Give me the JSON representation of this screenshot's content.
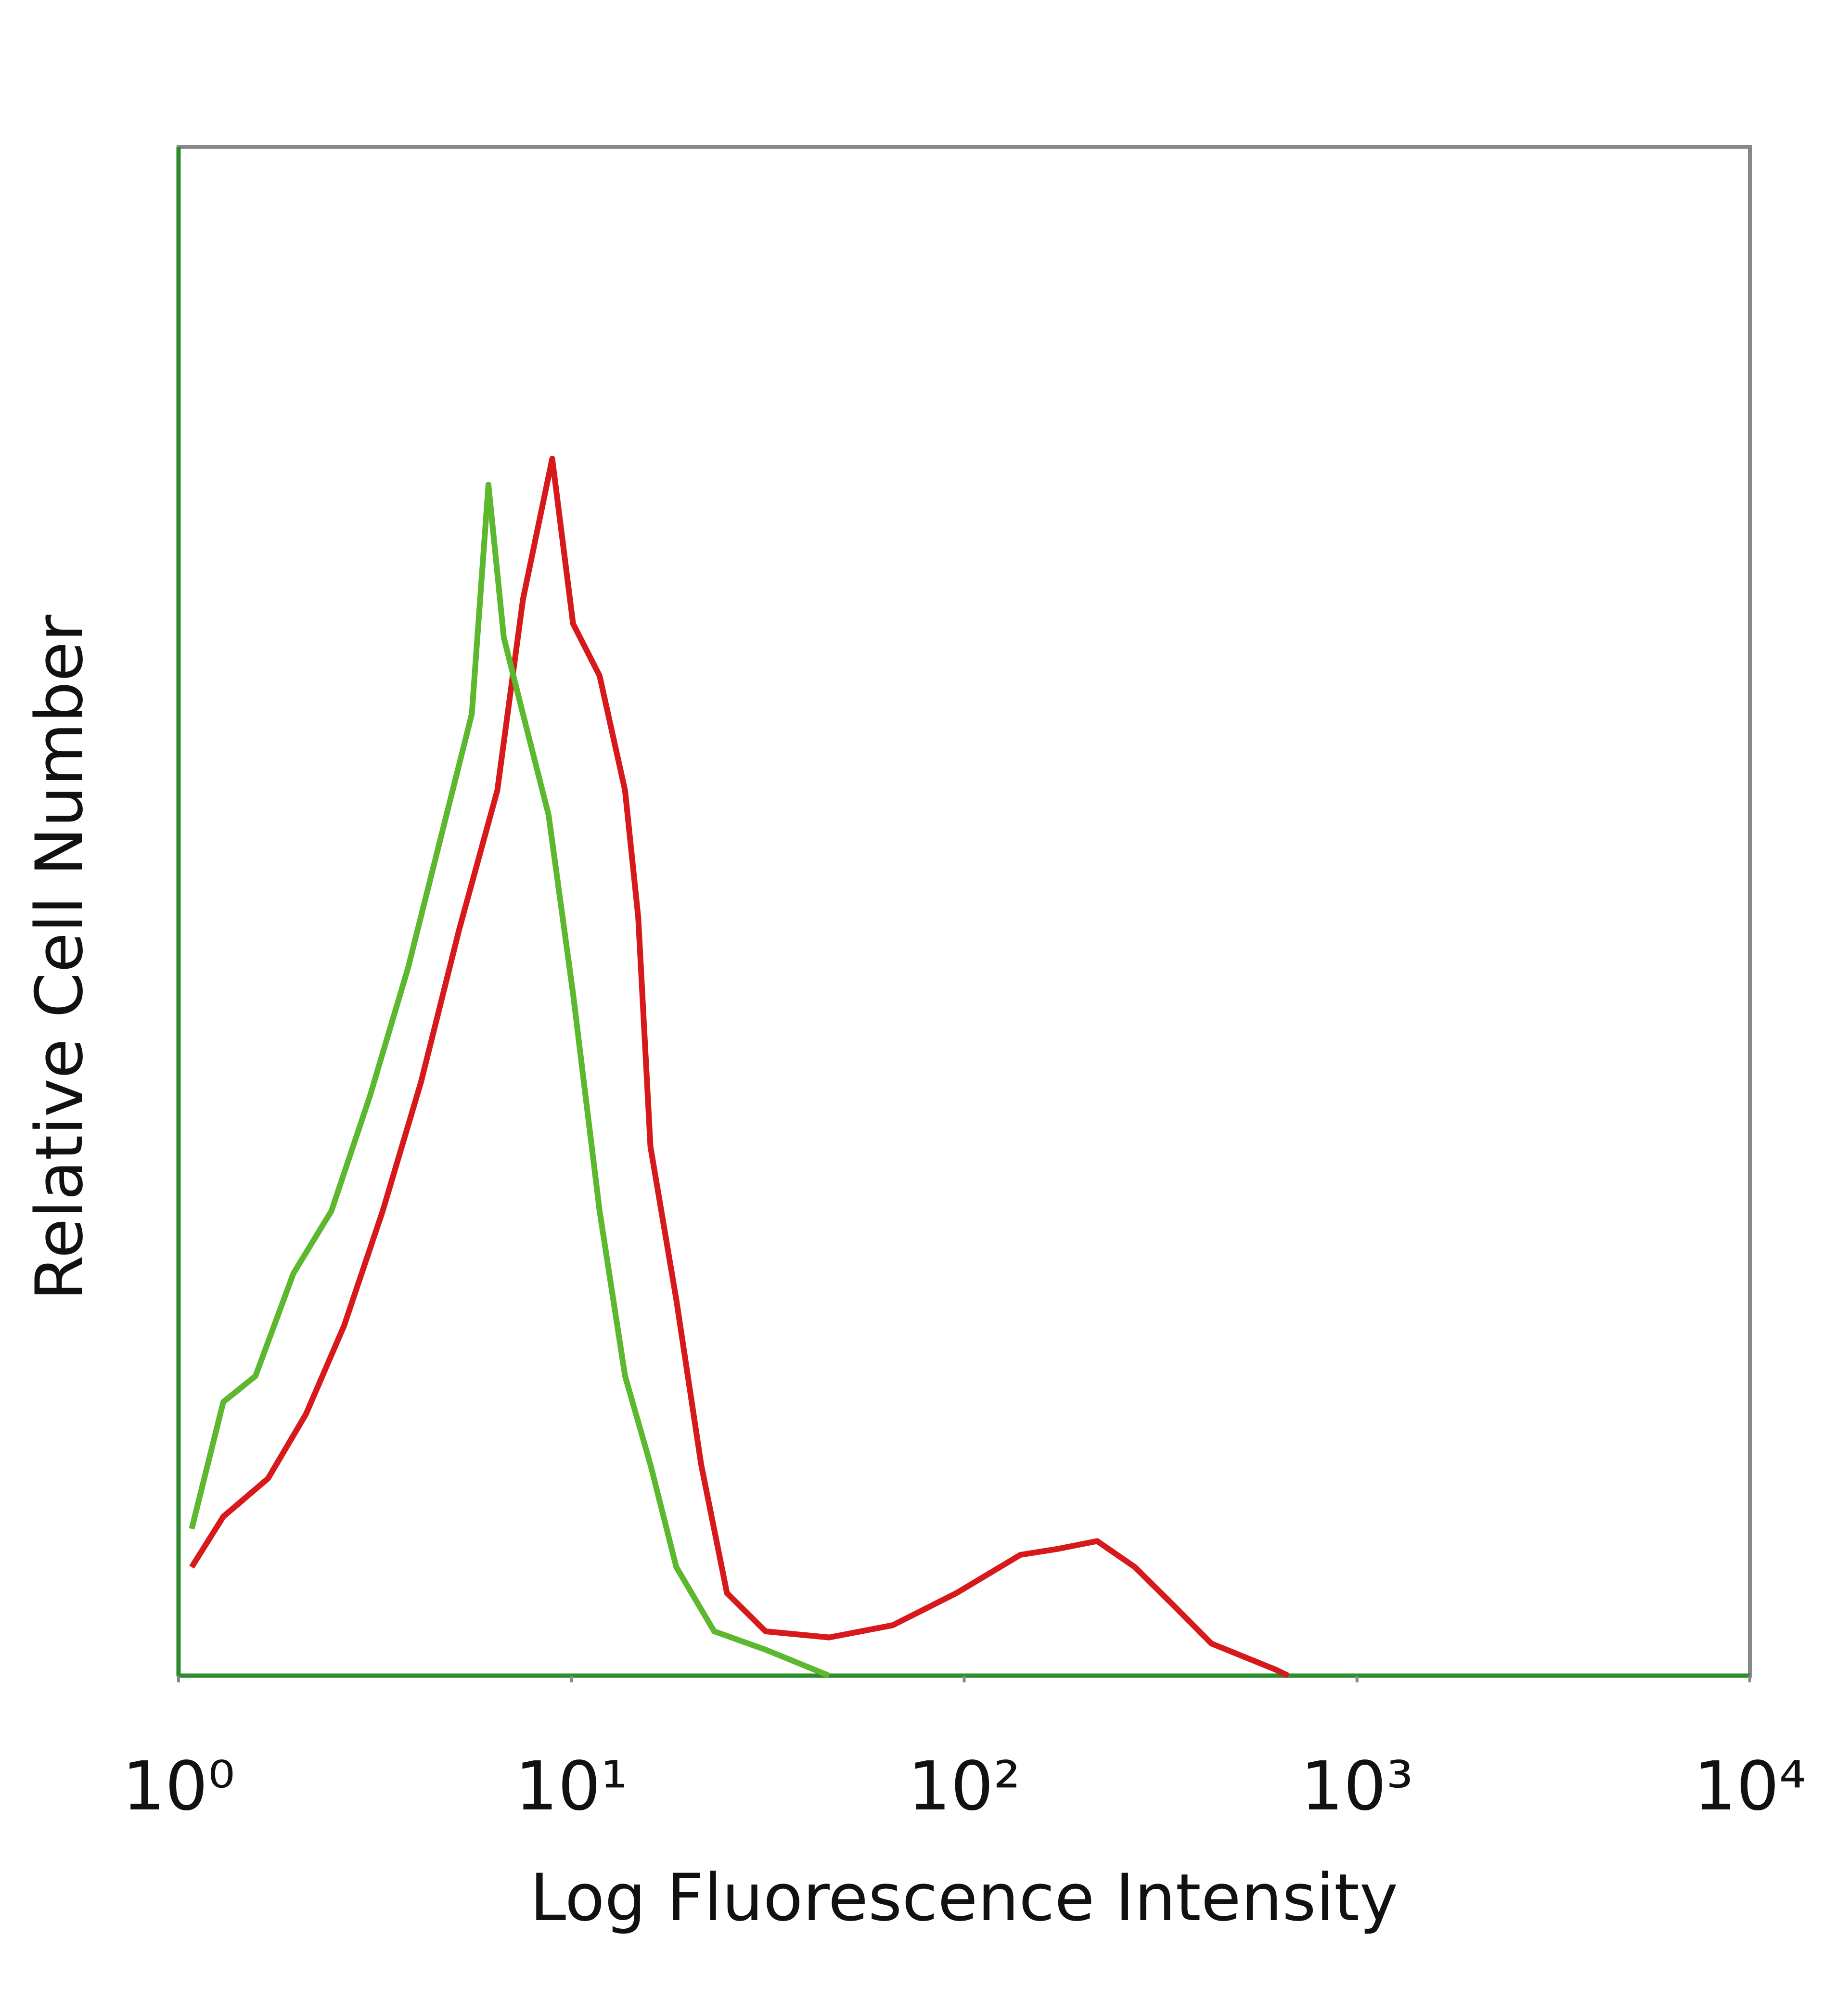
{
  "chart_data": {
    "type": "line",
    "xlabel": "Log Fluorescence Intensity",
    "ylabel": "Relative Cell Number",
    "xscale": "log",
    "xlim": [
      1,
      10000
    ],
    "xticks": [
      {
        "value": 1,
        "label": "10⁰"
      },
      {
        "value": 10,
        "label": "10¹"
      },
      {
        "value": 100,
        "label": "10²"
      },
      {
        "value": 1000,
        "label": "10³"
      },
      {
        "value": 10000,
        "label": "10⁴"
      }
    ],
    "ylim": [
      0,
      100
    ],
    "yticks": [],
    "series": [
      {
        "color": "#d7191c",
        "x": [
          1.08,
          1.3,
          1.69,
          2.11,
          2.64,
          3.31,
          4.14,
          5.18,
          6.48,
          7.53,
          8.94,
          10.1,
          11.8,
          13.7,
          14.8,
          15.9,
          18.5,
          21.4,
          24.9,
          31.2,
          45.3,
          65.8,
          95.6,
          139,
          174,
          218,
          272,
          341,
          426,
          620,
          668
        ],
        "values": [
          7.1,
          10.4,
          12.9,
          17.1,
          22.9,
          30.4,
          38.8,
          48.8,
          57.9,
          70.4,
          79.6,
          68.8,
          65.4,
          57.9,
          49.6,
          34.6,
          24.6,
          13.8,
          5.4,
          2.9,
          2.5,
          3.3,
          5.4,
          7.9,
          8.3,
          8.8,
          7.1,
          4.6,
          2.1,
          0.4,
          0
        ]
      },
      {
        "color": "#5cb82e",
        "x": [
          1.08,
          1.3,
          1.57,
          1.96,
          2.45,
          3.07,
          3.84,
          4.81,
          5.58,
          6.15,
          6.73,
          7.53,
          8.75,
          10.1,
          11.8,
          13.7,
          15.9,
          18.5,
          23.1,
          31.2,
          45.3
        ],
        "values": [
          9.6,
          17.9,
          19.6,
          26.3,
          30.4,
          37.9,
          46.3,
          56.3,
          62.9,
          77.9,
          67.9,
          62.9,
          56.3,
          44.6,
          30.4,
          19.6,
          13.8,
          7.1,
          2.9,
          1.7,
          0
        ]
      }
    ]
  }
}
